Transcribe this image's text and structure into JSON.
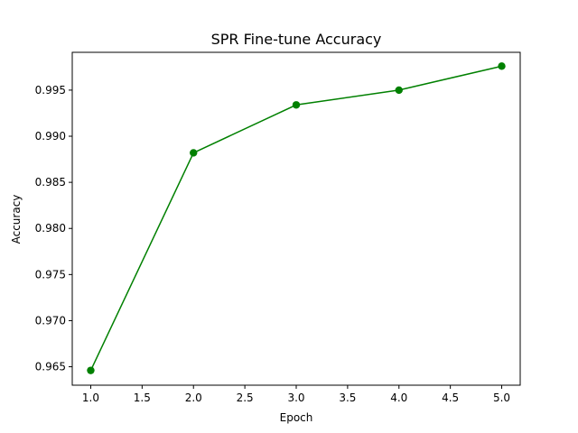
{
  "chart_data": {
    "type": "line",
    "title": "SPR Fine-tune Accuracy",
    "xlabel": "Epoch",
    "ylabel": "Accuracy",
    "x": [
      1.0,
      2.0,
      3.0,
      4.0,
      5.0
    ],
    "series": [
      {
        "values": [
          0.9646,
          0.9882,
          0.9934,
          0.995,
          0.9976
        ],
        "color": "#008000",
        "marker": "circle"
      }
    ],
    "xlim": [
      0.82,
      5.18
    ],
    "ylim": [
      0.963,
      0.9991
    ],
    "xticks": [
      1.0,
      1.5,
      2.0,
      2.5,
      3.0,
      3.5,
      4.0,
      4.5,
      5.0
    ],
    "xtick_labels": [
      "1.0",
      "1.5",
      "2.0",
      "2.5",
      "3.0",
      "3.5",
      "4.0",
      "4.5",
      "5.0"
    ],
    "yticks": [
      0.965,
      0.97,
      0.975,
      0.98,
      0.985,
      0.99,
      0.995
    ],
    "ytick_labels": [
      "0.965",
      "0.970",
      "0.975",
      "0.980",
      "0.985",
      "0.990",
      "0.995"
    ],
    "grid": false,
    "legend": "none"
  }
}
